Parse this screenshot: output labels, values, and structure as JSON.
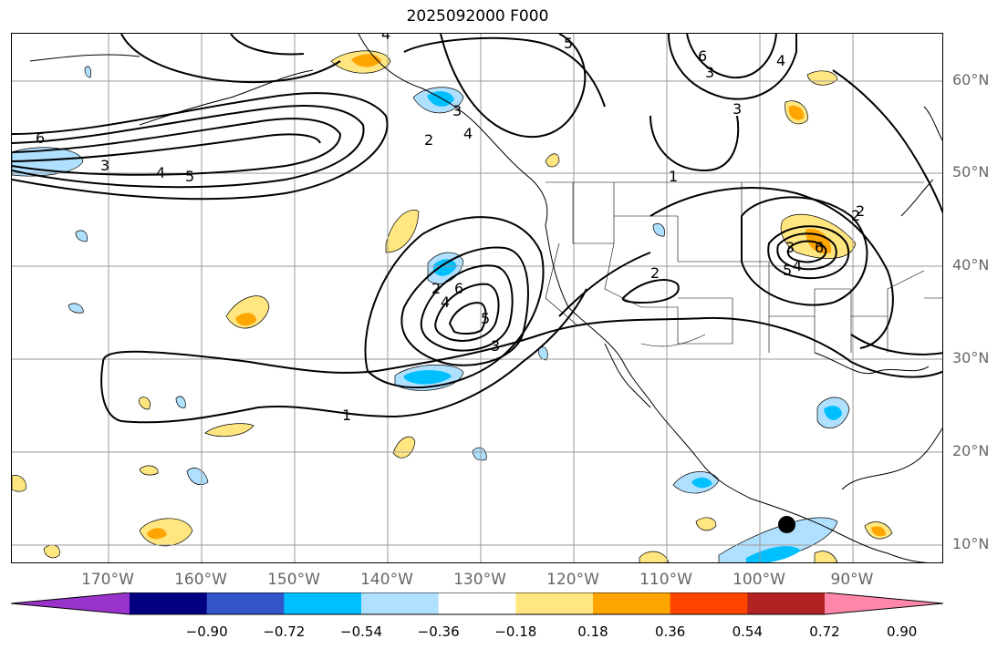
{
  "title": "2025092000 F000",
  "lat_labels": [
    "60°N",
    "50°N",
    "40°N",
    "30°N",
    "20°N",
    "10°N"
  ],
  "lon_labels": [
    "170°W",
    "160°W",
    "150°W",
    "140°W",
    "130°W",
    "120°W",
    "110°W",
    "100°W",
    "90°W"
  ],
  "colorbar": {
    "ticks": [
      "−0.90",
      "−0.72",
      "−0.54",
      "−0.36",
      "−0.18",
      "0.18",
      "0.36",
      "0.54",
      "0.72",
      "0.90"
    ],
    "colors": [
      "#9933cc",
      "#000080",
      "#3355cc",
      "#00bfff",
      "#b0e0ff",
      "#ffffff",
      "#ffe680",
      "#ffa500",
      "#ff4500",
      "#b22222",
      "#ff88aa"
    ]
  },
  "contour_labels": [
    "6",
    "3",
    "4",
    "5",
    "2",
    "1",
    "4",
    "6",
    "2",
    "5",
    "3",
    "4",
    "3",
    "2",
    "3",
    "4",
    "5",
    "1",
    "2",
    "5",
    "6",
    "4",
    "2",
    "3",
    "6",
    "3",
    "4"
  ],
  "marker": {
    "description": "black dot",
    "lat": 12,
    "lon": -96
  }
}
